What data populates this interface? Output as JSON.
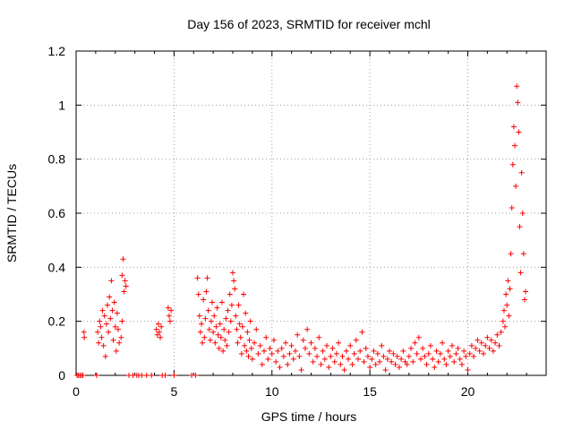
{
  "chart_data": {
    "type": "scatter",
    "title": "Day 156 of 2023, SRMTID for receiver mchl",
    "xlabel": "GPS time / hours",
    "ylabel": "SRMTID / TECUs",
    "xlim": [
      0,
      24
    ],
    "ylim": [
      0,
      1.2
    ],
    "grid": true,
    "marker": "+",
    "series_color": "#ff0000",
    "xticks": [
      {
        "value": 0,
        "label": "0"
      },
      {
        "value": 5,
        "label": "5"
      },
      {
        "value": 10,
        "label": "10"
      },
      {
        "value": 15,
        "label": "15"
      },
      {
        "value": 20,
        "label": "20"
      }
    ],
    "yticks": [
      {
        "value": 0,
        "label": "0"
      },
      {
        "value": 0.2,
        "label": "0.2"
      },
      {
        "value": 0.4,
        "label": "0.4"
      },
      {
        "value": 0.6,
        "label": "0.6"
      },
      {
        "value": 0.8,
        "label": "0.8"
      },
      {
        "value": 1.0,
        "label": "1"
      },
      {
        "value": 1.2,
        "label": "1.2"
      }
    ],
    "series": [
      {
        "name": "SRMTID",
        "points": [
          [
            0.05,
            0
          ],
          [
            0.12,
            0
          ],
          [
            0.2,
            0
          ],
          [
            0.28,
            0
          ],
          [
            0.35,
            0
          ],
          [
            0.4,
            0.16
          ],
          [
            0.42,
            0.14
          ],
          [
            1.05,
            0
          ],
          [
            1.1,
            0.16
          ],
          [
            1.15,
            0.12
          ],
          [
            1.2,
            0.2
          ],
          [
            1.25,
            0.18
          ],
          [
            1.3,
            0.14
          ],
          [
            1.35,
            0.24
          ],
          [
            1.4,
            0.11
          ],
          [
            1.45,
            0.22
          ],
          [
            1.5,
            0.07
          ],
          [
            1.55,
            0.19
          ],
          [
            1.6,
            0.26
          ],
          [
            1.65,
            0.16
          ],
          [
            1.7,
            0.29
          ],
          [
            1.75,
            0.21
          ],
          [
            1.8,
            0.35
          ],
          [
            1.85,
            0.24
          ],
          [
            1.9,
            0.13
          ],
          [
            1.95,
            0.27
          ],
          [
            2.0,
            0.18
          ],
          [
            2.05,
            0.09
          ],
          [
            2.1,
            0.23
          ],
          [
            2.15,
            0.17
          ],
          [
            2.2,
            0.12
          ],
          [
            2.35,
            0.37
          ],
          [
            2.4,
            0.43
          ],
          [
            2.45,
            0.31
          ],
          [
            2.5,
            0.35
          ],
          [
            2.55,
            0.33
          ],
          [
            2.3,
            0.14
          ],
          [
            2.35,
            0.2
          ],
          [
            2.7,
            0
          ],
          [
            2.9,
            0
          ],
          [
            3.1,
            0
          ],
          [
            3.2,
            0
          ],
          [
            3.35,
            0
          ],
          [
            3.6,
            0
          ],
          [
            3.85,
            0
          ],
          [
            4.1,
            0.17
          ],
          [
            4.15,
            0.15
          ],
          [
            4.2,
            0.19
          ],
          [
            4.25,
            0.16
          ],
          [
            4.3,
            0.14
          ],
          [
            4.35,
            0.18
          ],
          [
            4.4,
            0
          ],
          [
            4.55,
            0
          ],
          [
            4.7,
            0.25
          ],
          [
            4.75,
            0.22
          ],
          [
            4.8,
            0.2
          ],
          [
            4.85,
            0.24
          ],
          [
            5.0,
            0
          ],
          [
            5.9,
            0
          ],
          [
            6.1,
            0
          ],
          [
            6.2,
            0.36
          ],
          [
            6.25,
            0.3
          ],
          [
            6.3,
            0.22
          ],
          [
            6.35,
            0.16
          ],
          [
            6.4,
            0.19
          ],
          [
            6.45,
            0.12
          ],
          [
            6.5,
            0.28
          ],
          [
            6.55,
            0.14
          ],
          [
            6.6,
            0.21
          ],
          [
            6.65,
            0.31
          ],
          [
            6.7,
            0.36
          ],
          [
            6.75,
            0.24
          ],
          [
            6.8,
            0.17
          ],
          [
            6.85,
            0.13
          ],
          [
            6.9,
            0.2
          ],
          [
            6.95,
            0.27
          ],
          [
            7.0,
            0.16
          ],
          [
            7.05,
            0.22
          ],
          [
            7.1,
            0.12
          ],
          [
            7.15,
            0.18
          ],
          [
            7.2,
            0.25
          ],
          [
            7.25,
            0.15
          ],
          [
            7.3,
            0.1
          ],
          [
            7.35,
            0.19
          ],
          [
            7.4,
            0.14
          ],
          [
            7.45,
            0.27
          ],
          [
            7.5,
            0.09
          ],
          [
            7.55,
            0.17
          ],
          [
            7.6,
            0.13
          ],
          [
            7.65,
            0.21
          ],
          [
            7.7,
            0.11
          ],
          [
            7.75,
            0.24
          ],
          [
            7.8,
            0.16
          ],
          [
            7.85,
            0.3
          ],
          [
            7.9,
            0.2
          ],
          [
            7.95,
            0.26
          ],
          [
            8.0,
            0.38
          ],
          [
            8.05,
            0.35
          ],
          [
            8.1,
            0.32
          ],
          [
            8.15,
            0.22
          ],
          [
            8.2,
            0.17
          ],
          [
            8.25,
            0.12
          ],
          [
            8.3,
            0.26
          ],
          [
            8.35,
            0.19
          ],
          [
            8.4,
            0.14
          ],
          [
            8.45,
            0.08
          ],
          [
            8.5,
            0.18
          ],
          [
            8.55,
            0.3
          ],
          [
            8.6,
            0.11
          ],
          [
            8.65,
            0.23
          ],
          [
            8.7,
            0.09
          ],
          [
            8.75,
            0.16
          ],
          [
            8.8,
            0.07
          ],
          [
            8.85,
            0.13
          ],
          [
            8.9,
            0.2
          ],
          [
            8.95,
            0.1
          ],
          [
            9.0,
            0.06
          ],
          [
            9.1,
            0.12
          ],
          [
            9.2,
            0.17
          ],
          [
            9.3,
            0.08
          ],
          [
            9.4,
            0.11
          ],
          [
            9.5,
            0.04
          ],
          [
            9.6,
            0.09
          ],
          [
            9.7,
            0.14
          ],
          [
            9.8,
            0.06
          ],
          [
            9.9,
            0.1
          ],
          [
            10.0,
            0.08
          ],
          [
            10.1,
            0.13
          ],
          [
            10.2,
            0.05
          ],
          [
            10.3,
            0.09
          ],
          [
            10.4,
            0.03
          ],
          [
            10.5,
            0.1
          ],
          [
            10.6,
            0.07
          ],
          [
            10.7,
            0.12
          ],
          [
            10.8,
            0.04
          ],
          [
            10.9,
            0.08
          ],
          [
            11.0,
            0.11
          ],
          [
            11.1,
            0.06
          ],
          [
            11.2,
            0.09
          ],
          [
            11.3,
            0.15
          ],
          [
            11.4,
            0.07
          ],
          [
            11.5,
            0.02
          ],
          [
            11.6,
            0.13
          ],
          [
            11.7,
            0.1
          ],
          [
            11.8,
            0.17
          ],
          [
            11.9,
            0.08
          ],
          [
            12.0,
            0.12
          ],
          [
            12.1,
            0.05
          ],
          [
            12.2,
            0.1
          ],
          [
            12.3,
            0.07
          ],
          [
            12.4,
            0.14
          ],
          [
            12.5,
            0.04
          ],
          [
            12.6,
            0.09
          ],
          [
            12.7,
            0.06
          ],
          [
            12.8,
            0.11
          ],
          [
            12.9,
            0.03
          ],
          [
            13.0,
            0.07
          ],
          [
            13.1,
            0.1
          ],
          [
            13.2,
            0.05
          ],
          [
            13.3,
            0.08
          ],
          [
            13.4,
            0.12
          ],
          [
            13.5,
            0.04
          ],
          [
            13.6,
            0.07
          ],
          [
            13.7,
            0.02
          ],
          [
            13.8,
            0.09
          ],
          [
            13.9,
            0.06
          ],
          [
            14.0,
            0.11
          ],
          [
            14.1,
            0.04
          ],
          [
            14.2,
            0.08
          ],
          [
            14.3,
            0.13
          ],
          [
            14.4,
            0.06
          ],
          [
            14.5,
            0.09
          ],
          [
            14.6,
            0.16
          ],
          [
            14.7,
            0.05
          ],
          [
            14.8,
            0.1
          ],
          [
            14.9,
            0.07
          ],
          [
            15.0,
            0.03
          ],
          [
            15.1,
            0.06
          ],
          [
            15.2,
            0.09
          ],
          [
            15.3,
            0.04
          ],
          [
            15.4,
            0.08
          ],
          [
            15.5,
            0.05
          ],
          [
            15.6,
            0.11
          ],
          [
            15.7,
            0.07
          ],
          [
            15.8,
            0.02
          ],
          [
            15.9,
            0.06
          ],
          [
            16.0,
            0.09
          ],
          [
            16.1,
            0.05
          ],
          [
            16.2,
            0.08
          ],
          [
            16.3,
            0.04
          ],
          [
            16.4,
            0.07
          ],
          [
            16.5,
            0.03
          ],
          [
            16.6,
            0.06
          ],
          [
            16.7,
            0.09
          ],
          [
            16.8,
            0.05
          ],
          [
            16.9,
            0.04
          ],
          [
            17.0,
            0.07
          ],
          [
            17.1,
            0.1
          ],
          [
            17.2,
            0.05
          ],
          [
            17.3,
            0.12
          ],
          [
            17.4,
            0.08
          ],
          [
            17.5,
            0.14
          ],
          [
            17.6,
            0.06
          ],
          [
            17.7,
            0.1
          ],
          [
            17.8,
            0.07
          ],
          [
            17.9,
            0.04
          ],
          [
            18.0,
            0.08
          ],
          [
            18.1,
            0.11
          ],
          [
            18.2,
            0.06
          ],
          [
            18.3,
            0.03
          ],
          [
            18.4,
            0.09
          ],
          [
            18.5,
            0.05
          ],
          [
            18.6,
            0.08
          ],
          [
            18.7,
            0.12
          ],
          [
            18.8,
            0.06
          ],
          [
            18.9,
            0.04
          ],
          [
            19.0,
            0.09
          ],
          [
            19.1,
            0.07
          ],
          [
            19.2,
            0.11
          ],
          [
            19.3,
            0.05
          ],
          [
            19.4,
            0.08
          ],
          [
            19.5,
            0.1
          ],
          [
            19.6,
            0.06
          ],
          [
            19.7,
            0.04
          ],
          [
            19.8,
            0.09
          ],
          [
            19.9,
            0.07
          ],
          [
            20.0,
            0.02
          ],
          [
            20.1,
            0.08
          ],
          [
            20.2,
            0.11
          ],
          [
            20.3,
            0.07
          ],
          [
            20.4,
            0.1
          ],
          [
            20.5,
            0.13
          ],
          [
            20.6,
            0.09
          ],
          [
            20.7,
            0.12
          ],
          [
            20.8,
            0.08
          ],
          [
            20.9,
            0.11
          ],
          [
            21.0,
            0.14
          ],
          [
            21.1,
            0.1
          ],
          [
            21.2,
            0.13
          ],
          [
            21.3,
            0.09
          ],
          [
            21.4,
            0.12
          ],
          [
            21.5,
            0.15
          ],
          [
            21.6,
            0.11
          ],
          [
            21.7,
            0.16
          ],
          [
            21.8,
            0.2
          ],
          [
            21.85,
            0.24
          ],
          [
            21.9,
            0.18
          ],
          [
            21.95,
            0.3
          ],
          [
            22.0,
            0.26
          ],
          [
            22.05,
            0.35
          ],
          [
            22.1,
            0.22
          ],
          [
            22.15,
            0.32
          ],
          [
            22.2,
            0.45
          ],
          [
            22.25,
            0.62
          ],
          [
            22.3,
            0.78
          ],
          [
            22.35,
            0.92
          ],
          [
            22.4,
            0.85
          ],
          [
            22.45,
            0.7
          ],
          [
            22.5,
            1.07
          ],
          [
            22.55,
            1.01
          ],
          [
            22.6,
            0.9
          ],
          [
            22.65,
            0.55
          ],
          [
            22.7,
            0.38
          ],
          [
            22.75,
            0.75
          ],
          [
            22.8,
            0.6
          ],
          [
            22.85,
            0.45
          ],
          [
            22.9,
            0.28
          ],
          [
            22.95,
            0.31
          ]
        ]
      }
    ]
  }
}
